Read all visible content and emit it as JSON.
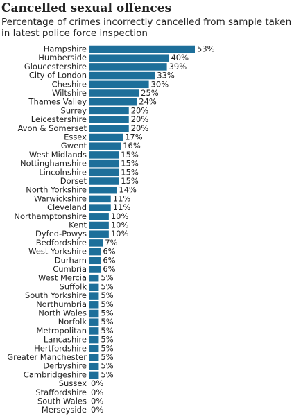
{
  "chart_data": {
    "type": "bar",
    "orientation": "horizontal",
    "title": "Cancelled sexual offences",
    "subtitle": "Percentage of crimes incorrectly cancelled from sample taken in latest police force inspection",
    "categories": [
      "Hampshire",
      "Humberside",
      "Gloucestershire",
      "City of London",
      "Cheshire",
      "Wiltshire",
      "Thames Valley",
      "Surrey",
      "Leicestershire",
      "Avon & Somerset",
      "Essex",
      "Gwent",
      "West Midlands",
      "Nottinghamshire",
      "Lincolnshire",
      "Dorset",
      "North Yorkshire",
      "Warwickshire",
      "Cleveland",
      "Northamptonshire",
      "Kent",
      "Dyfed-Powys",
      "Bedfordshire",
      "West Yorkshire",
      "Durham",
      "Cumbria",
      "West Mercia",
      "Suffolk",
      "South Yorkshire",
      "Northumbria",
      "North Wales",
      "Norfolk",
      "Metropolitan",
      "Lancashire",
      "Hertfordshire",
      "Greater Manchester",
      "Derbyshire",
      "Cambridgeshire",
      "Sussex",
      "Staffordshire",
      "South Wales",
      "Merseyside"
    ],
    "values": [
      53,
      40,
      39,
      33,
      30,
      25,
      24,
      20,
      20,
      20,
      17,
      16,
      15,
      15,
      15,
      15,
      14,
      11,
      11,
      10,
      10,
      10,
      7,
      6,
      6,
      6,
      5,
      5,
      5,
      5,
      5,
      5,
      5,
      5,
      5,
      5,
      5,
      5,
      0,
      0,
      0,
      0
    ],
    "value_labels": [
      "53%",
      "40%",
      "39%",
      "33%",
      "30%",
      "25%",
      "24%",
      "20%",
      "20%",
      "20%",
      "17%",
      "16%",
      "15%",
      "15%",
      "15%",
      "15%",
      "14%",
      "11%",
      "11%",
      "10%",
      "10%",
      "10%",
      "7%",
      "6%",
      "6%",
      "6%",
      "5%",
      "5%",
      "5%",
      "5%",
      "5%",
      "5%",
      "5%",
      "5%",
      "5%",
      "5%",
      "5%",
      "5%",
      "0%",
      "0%",
      "0%",
      "0%"
    ],
    "color": "#1d6f9a"
  }
}
